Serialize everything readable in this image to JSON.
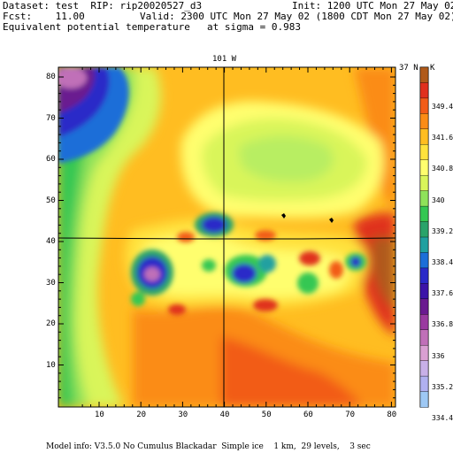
{
  "header": {
    "dataset": "Dataset: test  RIP: rip20020527_d3",
    "init": "Init: 1200 UTC Mon 27 May 02",
    "fcst": "Fcst:    11.00",
    "valid": "Valid: 2300 UTC Mon 27 May 02 (1800 CDT Mon 27 May 02)",
    "field": "Equivalent potential temperature",
    "level": "at sigma = 0.983"
  },
  "map": {
    "top_label": "101 W",
    "side_label": "37 N",
    "y_ticks": [
      "10",
      "20",
      "30",
      "40",
      "50",
      "60",
      "70",
      "80"
    ],
    "x_ticks": [
      "10",
      "20",
      "30",
      "40",
      "50",
      "60",
      "70",
      "80"
    ]
  },
  "colorbar": {
    "unit": "K",
    "labels": [
      "349.4",
      "341.6",
      "340.8",
      "340",
      "339.2",
      "338.4",
      "337.6",
      "336.8",
      "336",
      "335.2",
      "334.4"
    ],
    "colors": [
      "#b05a1a",
      "#e0301e",
      "#f25c19",
      "#fb8c16",
      "#ffbd21",
      "#ffe23c",
      "#fffe6e",
      "#d9f55a",
      "#8fe25a",
      "#34c752",
      "#2aa36a",
      "#20a0a0",
      "#1c6ed8",
      "#2a2ac8",
      "#3c14a8",
      "#6a1a90",
      "#9a3aa0",
      "#c070b8",
      "#d9a0d2",
      "#c8b0e8",
      "#b0b0f0",
      "#9ec8f4"
    ]
  },
  "footer": {
    "model_info": "Model info: V3.5.0 No Cumulus Blackadar  Simple ice    1 km,  29 levels,    3 sec"
  }
}
